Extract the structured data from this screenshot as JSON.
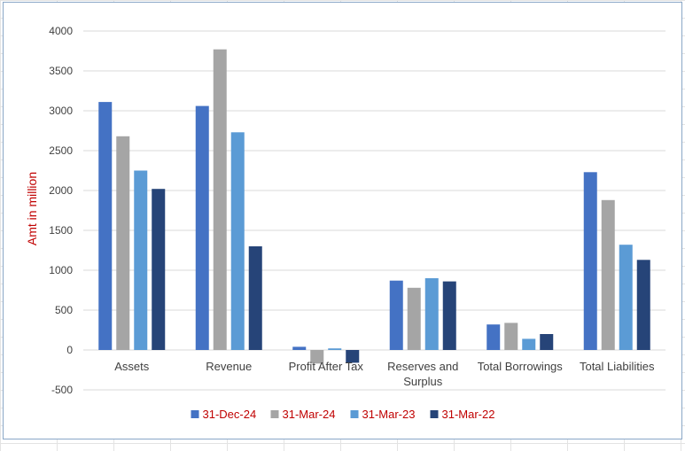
{
  "chart_data": {
    "type": "bar",
    "title": "",
    "xlabel": "",
    "ylabel": "Amt in million",
    "ylim": [
      -500,
      4000
    ],
    "yticks": [
      "4000",
      "3500",
      "3000",
      "2500",
      "2000",
      "1500",
      "1000",
      "500",
      "0",
      "-500"
    ],
    "grid": true,
    "legend_position": "bottom",
    "categories": [
      "Assets",
      "Revenue",
      "Profit After Tax",
      "Reserves and Surplus",
      "Total Borrowings",
      "Total Liabilities"
    ],
    "series": [
      {
        "name": "31-Dec-24",
        "color": "#4472c4",
        "values": [
          3110,
          3060,
          40,
          870,
          320,
          2230
        ]
      },
      {
        "name": "31-Mar-24",
        "color": "#a5a5a5",
        "values": [
          2680,
          3770,
          -170,
          780,
          340,
          1880
        ]
      },
      {
        "name": "31-Mar-23",
        "color": "#5b9bd5",
        "values": [
          2250,
          2730,
          20,
          900,
          140,
          1320
        ]
      },
      {
        "name": "31-Mar-22",
        "color": "#264478",
        "values": [
          2020,
          1300,
          -160,
          860,
          200,
          1130
        ]
      }
    ],
    "colors": {
      "axis_label": "#c00000",
      "legend_text": "#c00000",
      "tick_text": "#404040",
      "gridline": "#d9d9d9"
    }
  }
}
